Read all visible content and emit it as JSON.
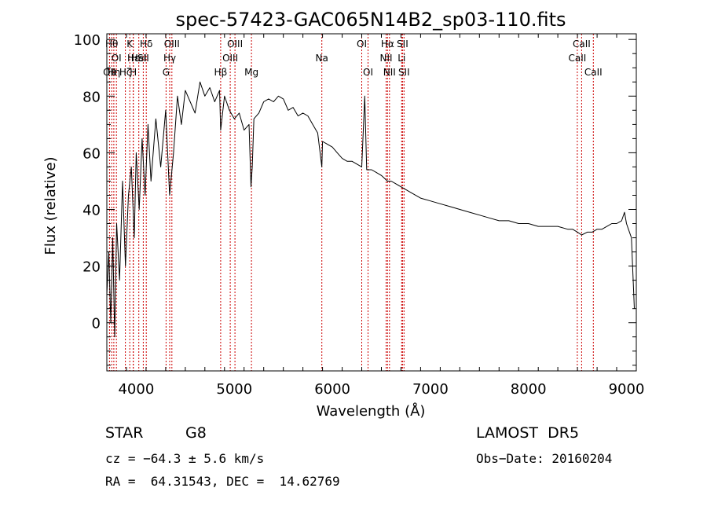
{
  "chart_data": {
    "type": "line",
    "title": "spec-57423-GAC065N14B2_sp03-110.fits",
    "xlabel": "Wavelength (Å)",
    "ylabel": "Flux (relative)",
    "xlim": [
      3700,
      9100
    ],
    "ylim": [
      -17,
      102
    ],
    "xticks": [
      4000,
      5000,
      6000,
      7000,
      8000,
      9000
    ],
    "yticks": [
      0,
      20,
      40,
      60,
      80,
      100
    ],
    "grid": false,
    "line_color": "#000000",
    "marker_color": "#cc0000",
    "series": [
      {
        "x": [
          3700,
          3720,
          3740,
          3760,
          3780,
          3800,
          3830,
          3860,
          3890,
          3920,
          3950,
          3980,
          4000,
          4030,
          4060,
          4090,
          4120,
          4150,
          4200,
          4250,
          4300,
          4340,
          4380,
          4420,
          4460,
          4500,
          4550,
          4600,
          4650,
          4700,
          4750,
          4800,
          4850,
          4861,
          4900,
          4950,
          5000,
          5050,
          5100,
          5150,
          5170,
          5183,
          5200,
          5250,
          5300,
          5350,
          5400,
          5450,
          5500,
          5550,
          5600,
          5650,
          5700,
          5750,
          5800,
          5850,
          5893,
          5900,
          5950,
          6000,
          6050,
          6100,
          6150,
          6200,
          6250,
          6300,
          6330,
          6350,
          6400,
          6450,
          6500,
          6563,
          6600,
          6650,
          6700,
          6750,
          6800,
          6900,
          7000,
          7100,
          7200,
          7300,
          7400,
          7500,
          7600,
          7700,
          7800,
          7900,
          8000,
          8100,
          8200,
          8300,
          8400,
          8450,
          8500,
          8542,
          8600,
          8650,
          8700,
          8750,
          8800,
          8850,
          8900,
          8950,
          8980,
          9000,
          9020,
          9050,
          9080
        ],
        "y": [
          10,
          25,
          0,
          30,
          -5,
          35,
          15,
          50,
          20,
          45,
          55,
          30,
          60,
          40,
          65,
          45,
          70,
          50,
          72,
          55,
          75,
          45,
          60,
          80,
          70,
          82,
          78,
          74,
          85,
          80,
          83,
          78,
          82,
          68,
          80,
          75,
          72,
          74,
          68,
          70,
          48,
          55,
          72,
          74,
          78,
          79,
          78,
          80,
          79,
          75,
          76,
          73,
          74,
          73,
          70,
          67,
          55,
          64,
          63,
          62,
          60,
          58,
          57,
          57,
          56,
          55,
          80,
          54,
          54,
          53,
          52,
          50,
          50,
          49,
          48,
          47,
          46,
          44,
          43,
          42,
          41,
          40,
          39,
          38,
          37,
          36,
          36,
          35,
          35,
          34,
          34,
          34,
          33,
          33,
          32,
          31,
          32,
          32,
          33,
          33,
          34,
          35,
          35,
          36,
          39,
          35,
          33,
          30,
          5
        ]
      }
    ],
    "lines": [
      {
        "x": 3727,
        "label": "OII",
        "row": 3
      },
      {
        "x": 3750,
        "label": "Hθ",
        "row": 1
      },
      {
        "x": 3771,
        "label": "Hη",
        "row": 3
      },
      {
        "x": 3798,
        "label": "OI",
        "row": 2
      },
      {
        "x": 3889,
        "label": "Hζ",
        "row": 3
      },
      {
        "x": 3934,
        "label": "K",
        "row": 1
      },
      {
        "x": 3969,
        "label": "H",
        "row": 3
      },
      {
        "x": 3970,
        "label": "Hε",
        "row": 2
      },
      {
        "x": 4026,
        "label": "HeI",
        "row": 2
      },
      {
        "x": 4072,
        "label": "SII",
        "row": 2
      },
      {
        "x": 4102,
        "label": "Hδ",
        "row": 1
      },
      {
        "x": 4304,
        "label": "G",
        "row": 3
      },
      {
        "x": 4341,
        "label": "Hγ",
        "row": 2
      },
      {
        "x": 4363,
        "label": "OIII",
        "row": 1
      },
      {
        "x": 4861,
        "label": "Hβ",
        "row": 3
      },
      {
        "x": 4959,
        "label": "OIII",
        "row": 2
      },
      {
        "x": 5007,
        "label": "OIII",
        "row": 1
      },
      {
        "x": 5175,
        "label": "Mg",
        "row": 3
      },
      {
        "x": 5893,
        "label": "Na",
        "row": 2
      },
      {
        "x": 6300,
        "label": "OI",
        "row": 1
      },
      {
        "x": 6364,
        "label": "OI",
        "row": 3
      },
      {
        "x": 6548,
        "label": "NII",
        "row": 2
      },
      {
        "x": 6563,
        "label": "Hα",
        "row": 1
      },
      {
        "x": 6583,
        "label": "NII",
        "row": 3
      },
      {
        "x": 6707,
        "label": "Li",
        "row": 2
      },
      {
        "x": 6716,
        "label": "SII",
        "row": 1
      },
      {
        "x": 6731,
        "label": "SII",
        "row": 3
      },
      {
        "x": 8498,
        "label": "CaII",
        "row": 2
      },
      {
        "x": 8542,
        "label": "CaII",
        "row": 1
      },
      {
        "x": 8662,
        "label": "CaII",
        "row": 3
      }
    ]
  },
  "info": {
    "class": "STAR",
    "subclass": "G8",
    "survey": "LAMOST  DR5",
    "cz": "cz = −64.3 ± 5.6 km/s",
    "obs_date": "Obs−Date: 20160204",
    "coords": "RA =  64.31543, DEC =  14.62769"
  }
}
